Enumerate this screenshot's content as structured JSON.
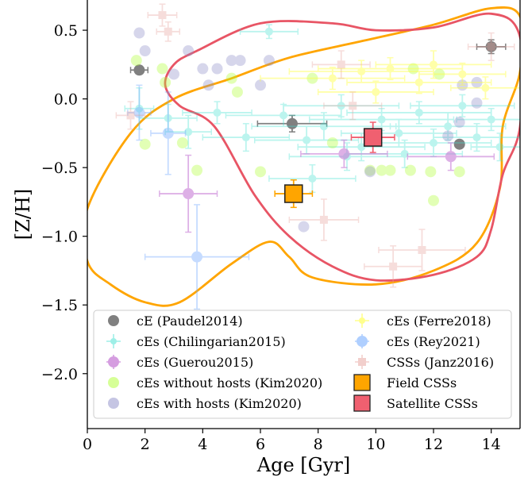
{
  "chart_data": {
    "type": "scatter",
    "xlabel": "Age [Gyr]",
    "ylabel": "[Z/H]",
    "xlim": [
      0,
      15
    ],
    "ylim": [
      -2.4,
      0.72
    ],
    "x_ticks": [
      "0",
      "2",
      "4",
      "6",
      "8",
      "10",
      "12",
      "14"
    ],
    "y_ticks": [
      "0.5",
      "0.0",
      "−0.5",
      "−1.0",
      "−1.5",
      "−2.0"
    ],
    "x_tick_values": [
      0,
      2,
      4,
      6,
      8,
      10,
      12,
      14
    ],
    "y_tick_values": [
      0.5,
      0.0,
      -0.5,
      -1.0,
      -1.5,
      -2.0
    ],
    "legend_position": "lower-center",
    "grid": false,
    "series": [
      {
        "name": "cE (Paudel2014)",
        "color": "#808080",
        "marker": "circle-errorbar",
        "alpha": 1.0,
        "points": [
          {
            "x": 7.1,
            "y": -0.18,
            "xerr": 1.2,
            "yerr": 0.06
          },
          {
            "x": 12.9,
            "y": -0.33,
            "xerr": 0.0,
            "yerr": 0.0
          },
          {
            "x": 1.8,
            "y": 0.21,
            "xerr": 0.3,
            "yerr": 0.0
          },
          {
            "x": 14.0,
            "y": 0.38,
            "xerr": 0.5,
            "yerr": 0.05
          }
        ]
      },
      {
        "name": "cEs (Chilingarian2015)",
        "color": "#40e0d0",
        "marker": "cross-errorbar",
        "alpha": 0.35,
        "points": [
          {
            "x": 1.8,
            "y": -0.07,
            "xerr": 0.5,
            "yerr": 0.15
          },
          {
            "x": 2.8,
            "y": -0.14,
            "xerr": 1.0,
            "yerr": 0.1
          },
          {
            "x": 3.5,
            "y": -0.24,
            "xerr": 0.8,
            "yerr": 0.12
          },
          {
            "x": 4.5,
            "y": -0.1,
            "xerr": 1.2,
            "yerr": 0.08
          },
          {
            "x": 5.5,
            "y": -0.28,
            "xerr": 1.5,
            "yerr": 0.1
          },
          {
            "x": 6.3,
            "y": 0.49,
            "xerr": 1.0,
            "yerr": 0.05
          },
          {
            "x": 6.8,
            "y": -0.12,
            "xerr": 2.0,
            "yerr": 0.08
          },
          {
            "x": 7.6,
            "y": -0.3,
            "xerr": 1.8,
            "yerr": 0.1
          },
          {
            "x": 8.2,
            "y": -0.2,
            "xerr": 2.5,
            "yerr": 0.1
          },
          {
            "x": 8.8,
            "y": -0.05,
            "xerr": 2.0,
            "yerr": 0.08
          },
          {
            "x": 9.5,
            "y": -0.35,
            "xerr": 2.2,
            "yerr": 0.1
          },
          {
            "x": 10.2,
            "y": -0.15,
            "xerr": 2.5,
            "yerr": 0.08
          },
          {
            "x": 10.8,
            "y": -0.25,
            "xerr": 2.0,
            "yerr": 0.1
          },
          {
            "x": 11.5,
            "y": -0.1,
            "xerr": 2.5,
            "yerr": 0.08
          },
          {
            "x": 12.0,
            "y": -0.32,
            "xerr": 2.0,
            "yerr": 0.1
          },
          {
            "x": 12.5,
            "y": -0.2,
            "xerr": 2.0,
            "yerr": 0.1
          },
          {
            "x": 13.0,
            "y": -0.05,
            "xerr": 1.8,
            "yerr": 0.08
          },
          {
            "x": 13.5,
            "y": -0.28,
            "xerr": 1.5,
            "yerr": 0.1
          },
          {
            "x": 14.0,
            "y": -0.15,
            "xerr": 1.2,
            "yerr": 0.08
          },
          {
            "x": 14.3,
            "y": -0.35,
            "xerr": 1.0,
            "yerr": 0.1
          },
          {
            "x": 9.0,
            "y": -0.42,
            "xerr": 2.0,
            "yerr": 0.1
          },
          {
            "x": 11.0,
            "y": -0.4,
            "xerr": 2.0,
            "yerr": 0.1
          },
          {
            "x": 7.8,
            "y": -0.58,
            "xerr": 1.5,
            "yerr": 0.1
          }
        ]
      },
      {
        "name": "cEs (Guerou2015)",
        "color": "#c77dd6",
        "marker": "circle-errorbar",
        "alpha": 0.6,
        "points": [
          {
            "x": 3.5,
            "y": -0.69,
            "xerr": 1.0,
            "yerr": 0.28
          },
          {
            "x": 8.9,
            "y": -0.4,
            "xerr": 1.5,
            "yerr": 0.1
          },
          {
            "x": 12.6,
            "y": -0.42,
            "xerr": 1.5,
            "yerr": 0.1
          }
        ]
      },
      {
        "name": "cEs without hosts (Kim2020)",
        "color": "#adff2f",
        "marker": "circle",
        "alpha": 0.35,
        "points": [
          {
            "x": 1.7,
            "y": 0.28
          },
          {
            "x": 2.0,
            "y": -0.33
          },
          {
            "x": 2.6,
            "y": 0.22
          },
          {
            "x": 2.7,
            "y": 0.12
          },
          {
            "x": 3.3,
            "y": -0.32
          },
          {
            "x": 3.8,
            "y": -0.52
          },
          {
            "x": 5.0,
            "y": 0.15
          },
          {
            "x": 5.2,
            "y": 0.05
          },
          {
            "x": 6.0,
            "y": -0.53
          },
          {
            "x": 8.5,
            "y": -0.32
          },
          {
            "x": 9.8,
            "y": -0.52
          },
          {
            "x": 10.2,
            "y": -0.52
          },
          {
            "x": 10.5,
            "y": -0.52
          },
          {
            "x": 11.2,
            "y": -0.52
          },
          {
            "x": 11.9,
            "y": -0.53
          },
          {
            "x": 12.0,
            "y": -0.74
          },
          {
            "x": 12.9,
            "y": -0.53
          },
          {
            "x": 7.8,
            "y": 0.15
          },
          {
            "x": 11.3,
            "y": 0.22
          },
          {
            "x": 12.2,
            "y": 0.18
          }
        ]
      },
      {
        "name": "cEs with hosts (Kim2020)",
        "color": "#8c8cc8",
        "marker": "circle",
        "alpha": 0.35,
        "points": [
          {
            "x": 1.8,
            "y": 0.48
          },
          {
            "x": 2.0,
            "y": 0.35
          },
          {
            "x": 3.5,
            "y": 0.35
          },
          {
            "x": 4.0,
            "y": 0.22
          },
          {
            "x": 4.5,
            "y": 0.22
          },
          {
            "x": 5.0,
            "y": 0.28
          },
          {
            "x": 5.3,
            "y": 0.28
          },
          {
            "x": 6.3,
            "y": 0.28
          },
          {
            "x": 3.0,
            "y": 0.18
          },
          {
            "x": 4.2,
            "y": 0.1
          },
          {
            "x": 6.0,
            "y": 0.1
          },
          {
            "x": 7.5,
            "y": -0.93
          },
          {
            "x": 9.8,
            "y": -0.53
          },
          {
            "x": 12.5,
            "y": -0.27
          },
          {
            "x": 13.0,
            "y": 0.1
          },
          {
            "x": 13.5,
            "y": 0.12
          },
          {
            "x": 13.5,
            "y": -0.03
          },
          {
            "x": 12.9,
            "y": -0.17
          }
        ]
      },
      {
        "name": "cEs (Ferre2018)",
        "color": "#ffff40",
        "marker": "cross-errorbar",
        "alpha": 0.45,
        "points": [
          {
            "x": 8.5,
            "y": 0.15,
            "xerr": 2.5,
            "yerr": 0.08
          },
          {
            "x": 9.5,
            "y": 0.2,
            "xerr": 2.5,
            "yerr": 0.08
          },
          {
            "x": 10.5,
            "y": 0.22,
            "xerr": 2.5,
            "yerr": 0.08
          },
          {
            "x": 11.5,
            "y": 0.12,
            "xerr": 2.5,
            "yerr": 0.08
          },
          {
            "x": 12.0,
            "y": 0.25,
            "xerr": 2.0,
            "yerr": 0.1
          },
          {
            "x": 13.0,
            "y": 0.18,
            "xerr": 1.5,
            "yerr": 0.08
          },
          {
            "x": 13.8,
            "y": 0.08,
            "xerr": 1.2,
            "yerr": 0.08
          },
          {
            "x": 10.0,
            "y": 0.05,
            "xerr": 2.0,
            "yerr": 0.08
          }
        ]
      },
      {
        "name": "cEs (Rey2021)",
        "color": "#6fa8ff",
        "marker": "circle-errorbar",
        "alpha": 0.4,
        "points": [
          {
            "x": 3.8,
            "y": -1.15,
            "xerr": 1.8,
            "yerr": 0.38
          },
          {
            "x": 2.8,
            "y": -0.25,
            "xerr": 0.6,
            "yerr": 0.3
          },
          {
            "x": 1.8,
            "y": -0.1,
            "xerr": 0.4,
            "yerr": 0.2
          }
        ]
      },
      {
        "name": "CSSs (Janz2016)",
        "color": "#e6a09a",
        "marker": "square-errorbar",
        "alpha": 0.35,
        "points": [
          {
            "x": 2.6,
            "y": 0.61,
            "xerr": 0.5,
            "yerr": 0.08
          },
          {
            "x": 2.8,
            "y": 0.49,
            "xerr": 0.4,
            "yerr": 0.07
          },
          {
            "x": 8.2,
            "y": -0.88,
            "xerr": 1.2,
            "yerr": 0.15
          },
          {
            "x": 11.6,
            "y": -1.1,
            "xerr": 1.5,
            "yerr": 0.15
          },
          {
            "x": 10.6,
            "y": -1.22,
            "xerr": 1.0,
            "yerr": 0.15
          },
          {
            "x": 8.8,
            "y": 0.25,
            "xerr": 1.0,
            "yerr": 0.1
          },
          {
            "x": 1.5,
            "y": -0.12,
            "xerr": 0.5,
            "yerr": 0.1
          },
          {
            "x": 14.0,
            "y": 0.38,
            "xerr": 0.8,
            "yerr": 0.1
          },
          {
            "x": 9.2,
            "y": -0.05,
            "xerr": 1.0,
            "yerr": 0.1
          }
        ]
      },
      {
        "name": "Field CSSs",
        "color": "#ffa500",
        "marker": "square-errorbar",
        "alpha": 1.0,
        "points": [
          {
            "x": 7.15,
            "y": -0.69,
            "xerr": 0.65,
            "yerr": 0.1
          }
        ]
      },
      {
        "name": "Satellite CSSs",
        "color": "#f06070",
        "marker": "square-errorbar",
        "alpha": 1.0,
        "points": [
          {
            "x": 9.9,
            "y": -0.28,
            "xerr": 0.75,
            "yerr": 0.11
          }
        ]
      }
    ],
    "contours": [
      {
        "color": "#ffa500",
        "points": [
          [
            0,
            -0.8
          ],
          [
            1.5,
            -0.25
          ],
          [
            3.0,
            0.0
          ],
          [
            5.0,
            0.15
          ],
          [
            7.0,
            0.3
          ],
          [
            9.5,
            0.42
          ],
          [
            12.0,
            0.54
          ],
          [
            14.0,
            0.66
          ],
          [
            15.0,
            0.6
          ],
          [
            15.0,
            0.2
          ],
          [
            14.4,
            -0.2
          ],
          [
            14.3,
            -0.65
          ],
          [
            13.5,
            -1.05
          ],
          [
            12.0,
            -1.25
          ],
          [
            10.0,
            -1.35
          ],
          [
            7.8,
            -1.3
          ],
          [
            7.0,
            -1.15
          ],
          [
            6.3,
            -1.04
          ],
          [
            5.0,
            -1.2
          ],
          [
            3.2,
            -1.48
          ],
          [
            2.0,
            -1.48
          ],
          [
            0.8,
            -1.35
          ],
          [
            0,
            -1.18
          ]
        ]
      },
      {
        "color": "#e85565",
        "points": [
          [
            3.0,
            0.25
          ],
          [
            3.8,
            0.35
          ],
          [
            6.0,
            0.55
          ],
          [
            8.5,
            0.55
          ],
          [
            10.0,
            0.5
          ],
          [
            12.0,
            0.52
          ],
          [
            14.0,
            0.62
          ],
          [
            15.0,
            0.45
          ],
          [
            15.0,
            -0.2
          ],
          [
            14.4,
            -0.55
          ],
          [
            14.0,
            -0.95
          ],
          [
            13.5,
            -1.15
          ],
          [
            12.0,
            -1.28
          ],
          [
            10.0,
            -1.32
          ],
          [
            8.5,
            -1.22
          ],
          [
            7.0,
            -1.0
          ],
          [
            5.8,
            -0.7
          ],
          [
            4.4,
            -0.2
          ],
          [
            3.2,
            -0.05
          ],
          [
            2.7,
            0.1
          ]
        ]
      }
    ]
  }
}
